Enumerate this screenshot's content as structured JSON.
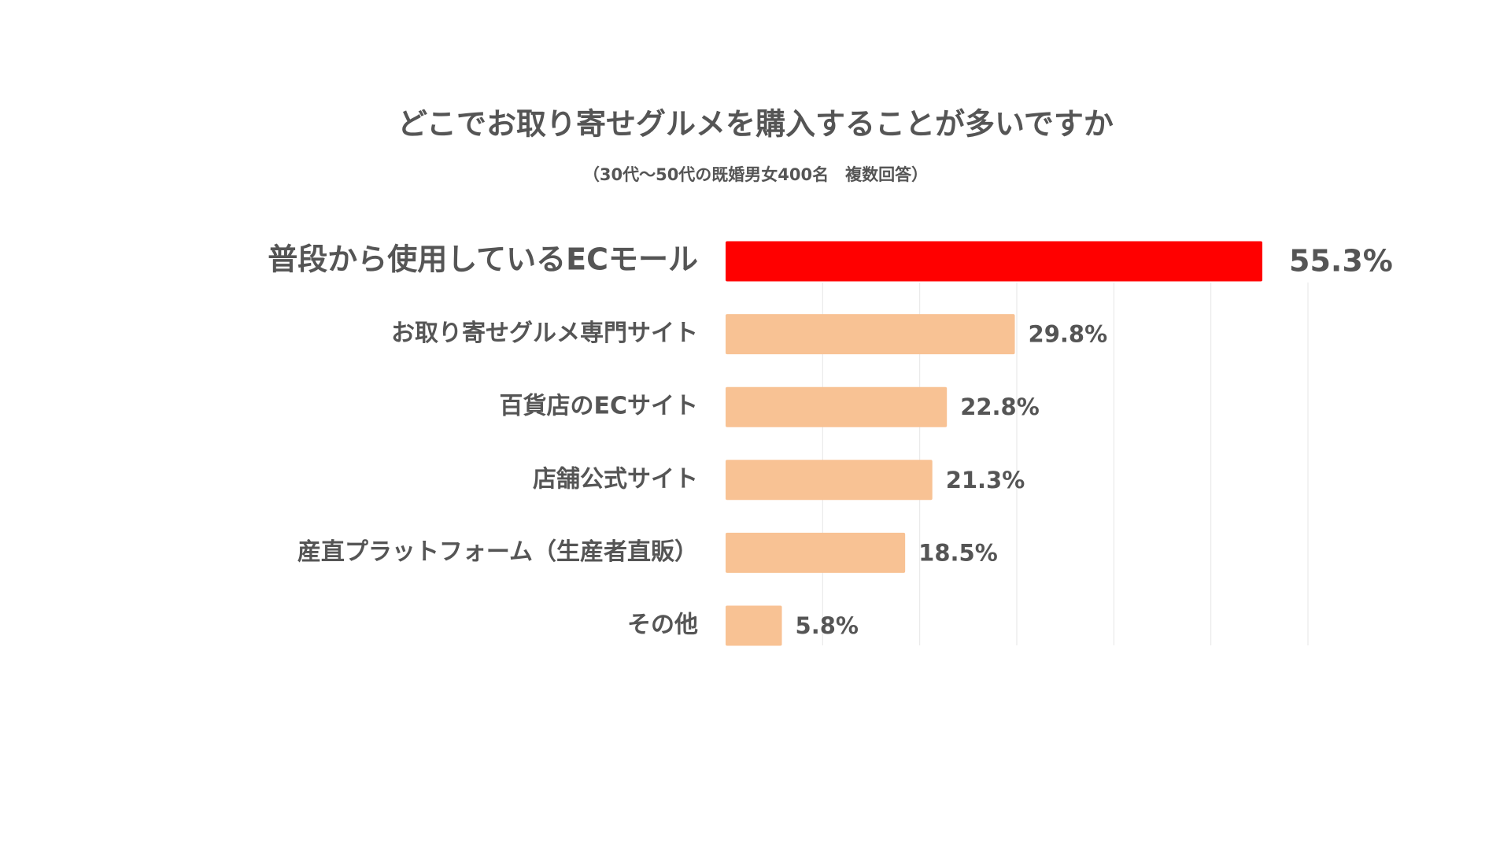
{
  "chart_data": {
    "type": "hbar",
    "title": "どこでお取り寄せグルメを購入することが多いですか",
    "subtitle": "（30代〜50代の既婚男女400名　複数回答）",
    "categories": [
      "普段から使用しているECモール",
      "お取り寄せグルメ専門サイト",
      "百貨店のECサイト",
      "店舗公式サイト",
      "産直プラットフォーム（生産者直販）",
      "その他"
    ],
    "values": [
      55.3,
      29.8,
      22.8,
      21.3,
      18.5,
      5.8
    ],
    "value_labels": [
      "55.3%",
      "29.8%",
      "22.8%",
      "21.3%",
      "18.5%",
      "5.8%"
    ],
    "color": "#f8c294",
    "highlight": 0,
    "highlight_color": "#ff0000",
    "xlim": [
      0,
      60
    ],
    "xticks": [
      10,
      20,
      30,
      40,
      50,
      60
    ],
    "grid": true
  }
}
